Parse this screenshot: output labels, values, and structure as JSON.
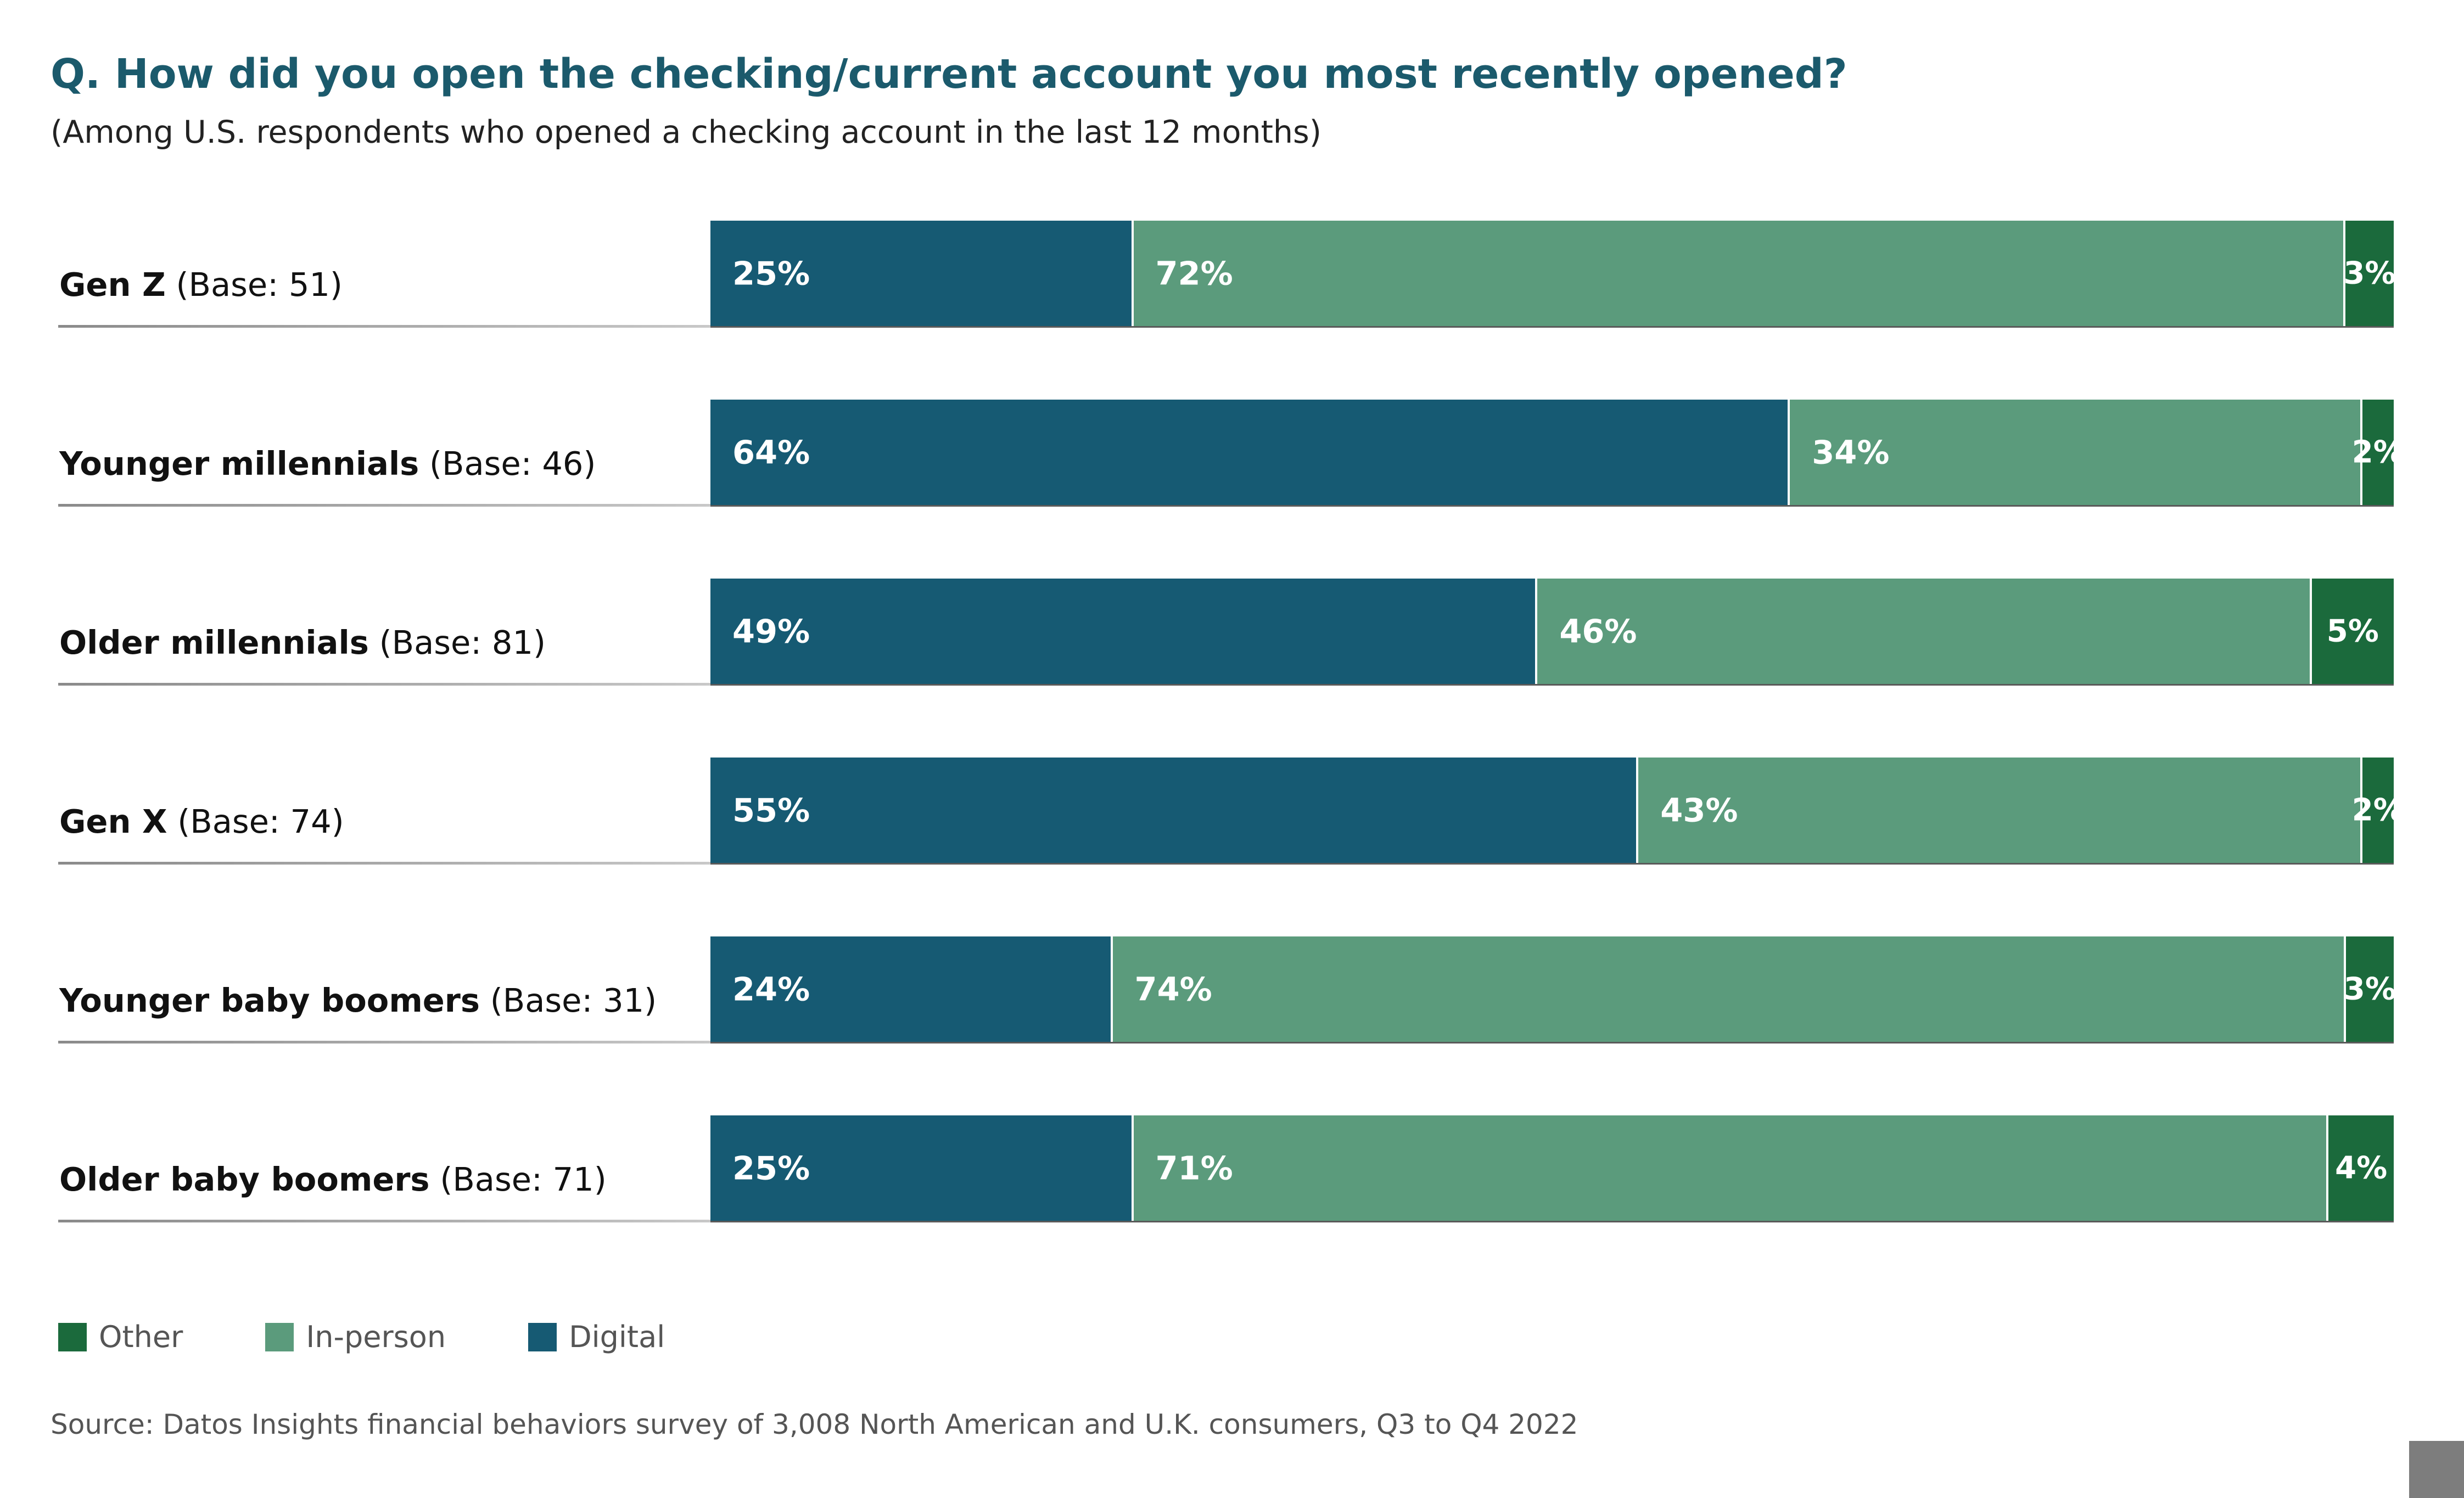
{
  "chart_data": {
    "type": "bar",
    "orientation": "horizontal",
    "stacked": true,
    "title": "Q. How did you open the checking/current account you most recently opened?",
    "subtitle": "(Among U.S. respondents who opened a checking account in the last 12 months)",
    "categories": [
      {
        "name": "Gen Z",
        "base": "(Base: 51)"
      },
      {
        "name": "Younger millennials",
        "base": "(Base: 46)"
      },
      {
        "name": "Older millennials",
        "base": "(Base: 81)"
      },
      {
        "name": "Gen X",
        "base": "(Base: 74)"
      },
      {
        "name": "Younger baby boomers",
        "base": "(Base: 31)"
      },
      {
        "name": "Older baby boomers",
        "base": "(Base: 71)"
      }
    ],
    "series": [
      {
        "name": "Digital",
        "key": "digital",
        "color": "#165a73",
        "values": [
          25,
          64,
          49,
          55,
          24,
          25
        ]
      },
      {
        "name": "In-person",
        "key": "inperson",
        "color": "#5b9b7c",
        "values": [
          72,
          34,
          46,
          43,
          74,
          71
        ]
      },
      {
        "name": "Other",
        "key": "other",
        "color": "#1b6a3c",
        "values": [
          3,
          2,
          5,
          2,
          3,
          4
        ]
      }
    ],
    "value_suffix": "%",
    "legend": {
      "placement": "bottom-left",
      "order": [
        "Other",
        "In-person",
        "Digital"
      ]
    },
    "grid": false
  },
  "source": "Source: Datos Insights financial behaviors survey of 3,008 North American and U.K. consumers, Q3 to Q4 2022",
  "colors": {
    "title": "#1b5a6c",
    "digital": "#165a73",
    "inperson": "#5b9b7c",
    "other": "#1b6a3c",
    "corner_box": "#7d7d7d"
  }
}
